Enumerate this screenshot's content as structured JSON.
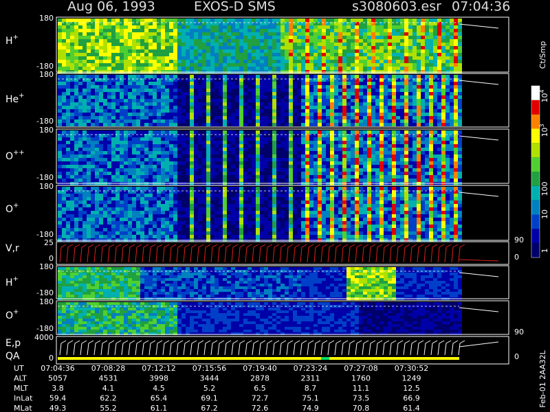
{
  "header": {
    "date": "Aug 06, 1993",
    "instrument": "EXOS-D SMS",
    "file": "s3080603.esr",
    "time": "07:04:36"
  },
  "panels": [
    {
      "label": "H",
      "sup": "+",
      "ticks": [
        "180",
        "-180"
      ]
    },
    {
      "label": "He",
      "sup": "+",
      "ticks": [
        "180",
        "-180"
      ]
    },
    {
      "label": "O",
      "sup": "++",
      "ticks": [
        "180",
        "-180"
      ]
    },
    {
      "label": "O",
      "sup": "+",
      "ticks": [
        "180",
        "-180"
      ]
    },
    {
      "label": "V,r",
      "sup": "",
      "ticks": [
        "25",
        "0"
      ],
      "right_ticks": [
        "90",
        "0"
      ]
    },
    {
      "label": "H",
      "sup": "+",
      "ticks": [
        "180",
        "-180"
      ]
    },
    {
      "label": "O",
      "sup": "+",
      "ticks": [
        "180",
        "-180"
      ],
      "right_ticks": [
        "90"
      ]
    },
    {
      "label": "E,p",
      "sup": "",
      "sub_label": "QA",
      "ticks": [
        "4000",
        "0"
      ],
      "right_ticks": [
        "0"
      ]
    }
  ],
  "colorbar": {
    "title": "Ct/Smp",
    "ticks": [
      {
        "base": "10",
        "exp": "4"
      },
      {
        "base": "10",
        "exp": "3"
      },
      {
        "base": "100",
        "exp": ""
      },
      {
        "base": "10",
        "exp": ""
      },
      {
        "base": "1",
        "exp": ""
      }
    ]
  },
  "table": {
    "rows": [
      [
        "UT",
        "07:04:36",
        "07:08:28",
        "07:12:12",
        "07:15:56",
        "07:19:40",
        "07:23:24",
        "07:27:08",
        "07:30:52"
      ],
      [
        "ALT",
        "5057",
        "4531",
        "3998",
        "3444",
        "2878",
        "2311",
        "1760",
        "1249"
      ],
      [
        "MLT",
        "3.8",
        "4.1",
        "4.5",
        "5.2",
        "6.5",
        "8.7",
        "11.1",
        "12.5"
      ],
      [
        "InLat",
        "59.4",
        "62.2",
        "65.4",
        "69.1",
        "72.7",
        "75.1",
        "73.5",
        "66.9"
      ],
      [
        "MLat",
        "49.3",
        "55.2",
        "61.1",
        "67.2",
        "72.6",
        "74.9",
        "70.8",
        "61.4"
      ]
    ]
  },
  "footer": "Feb-01 2AA32L"
}
